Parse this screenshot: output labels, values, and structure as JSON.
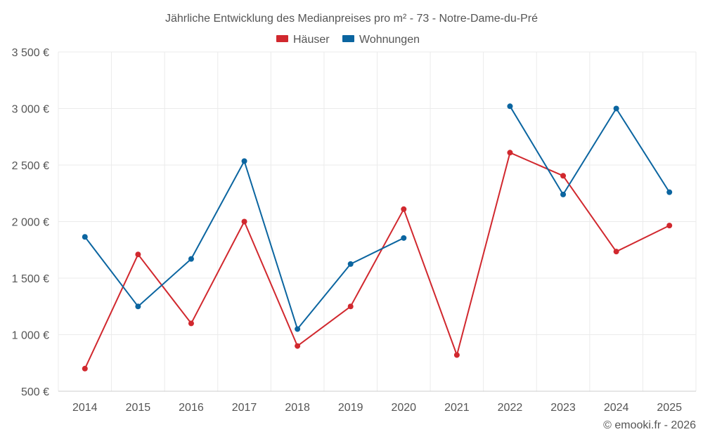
{
  "chart_data": {
    "type": "line",
    "title": "Jährliche Entwicklung des Medianpreises pro m² - 73 - Notre-Dame-du-Pré",
    "categories": [
      "2014",
      "2015",
      "2016",
      "2017",
      "2018",
      "2019",
      "2020",
      "2021",
      "2022",
      "2023",
      "2024",
      "2025"
    ],
    "series": [
      {
        "name": "Häuser",
        "color": "#d1282e",
        "values": [
          700,
          1710,
          1100,
          2000,
          900,
          1250,
          2110,
          820,
          2610,
          2405,
          1735,
          1965
        ]
      },
      {
        "name": "Wohnungen",
        "color": "#0b65a0",
        "values": [
          1865,
          1250,
          1670,
          2535,
          1050,
          1625,
          1855,
          null,
          3020,
          2240,
          3000,
          2260
        ]
      }
    ],
    "ylim": [
      500,
      3500
    ],
    "yticks": [
      500,
      1000,
      1500,
      2000,
      2500,
      3000,
      3500
    ],
    "ytick_labels": [
      "500 €",
      "1 000 €",
      "1 500 €",
      "2 000 €",
      "2 500 €",
      "3 000 €",
      "3 500 €"
    ],
    "xlabel": "",
    "ylabel": "",
    "grid": true,
    "legend_position": "top-center"
  },
  "credit": "© emooki.fr - 2026"
}
